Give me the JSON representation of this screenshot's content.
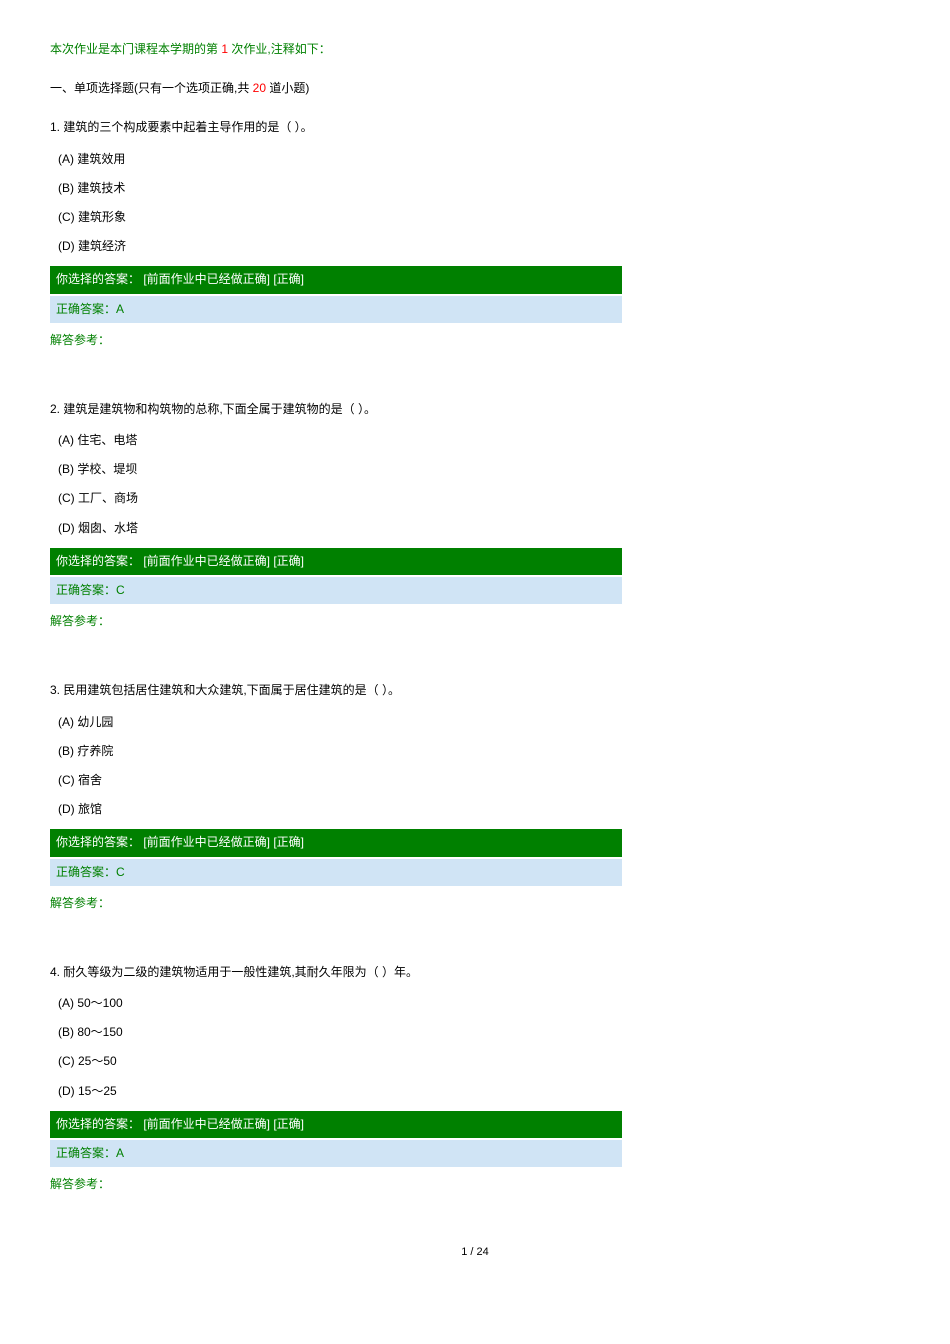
{
  "intro": {
    "prefix": "本次作业是本门课程本学期的第 ",
    "num": "1",
    "suffix": " 次作业,注释如下："
  },
  "sectionTitle": {
    "prefix": "一、单项选择题(只有一个选项正确,共 ",
    "num": "20",
    "suffix": " 道小题)"
  },
  "questions": [
    {
      "text": "1. 建筑的三个构成要素中起着主导作用的是（   ）。",
      "options": [
        "(A) 建筑效用",
        "(B) 建筑技术",
        "(C) 建筑形象",
        "(D) 建筑经济"
      ],
      "yourAnswer": "你选择的答案：  [前面作业中已经做正确]   [正确]",
      "correctAnswer": "正确答案：A",
      "explain": "解答参考："
    },
    {
      "text": "2. 建筑是建筑物和构筑物的总称,下面全属于建筑物的是（   ）。",
      "options": [
        "(A) 住宅、电塔",
        "(B) 学校、堤坝",
        "(C) 工厂、商场",
        "(D) 烟囱、水塔"
      ],
      "yourAnswer": "你选择的答案：  [前面作业中已经做正确]   [正确]",
      "correctAnswer": "正确答案：C",
      "explain": "解答参考："
    },
    {
      "text": "3. 民用建筑包括居住建筑和大众建筑,下面属于居住建筑的是（   ）。",
      "options": [
        "(A) 幼儿园",
        "(B) 疗养院",
        "(C) 宿舍",
        "(D) 旅馆"
      ],
      "yourAnswer": "你选择的答案：  [前面作业中已经做正确]   [正确]",
      "correctAnswer": "正确答案：C",
      "explain": "解答参考："
    },
    {
      "text": "4. 耐久等级为二级的建筑物适用于一般性建筑,其耐久年限为（   ）年。",
      "options": [
        "(A) 50～100",
        "(B) 80～150",
        "(C) 25～50",
        "(D) 15～25"
      ],
      "yourAnswer": "你选择的答案：  [前面作业中已经做正确]   [正确]",
      "correctAnswer": "正确答案：A",
      "explain": "解答参考："
    }
  ],
  "pager": "1 / 24",
  "style": {
    "answerBarBg": "#008000",
    "answerBarColor": "#ffffff",
    "correctBarBg": "#d0e4f5",
    "correctBarColor": "#008000",
    "greenText": "#008000",
    "redText": "#ff0000",
    "barWidth": 560
  }
}
